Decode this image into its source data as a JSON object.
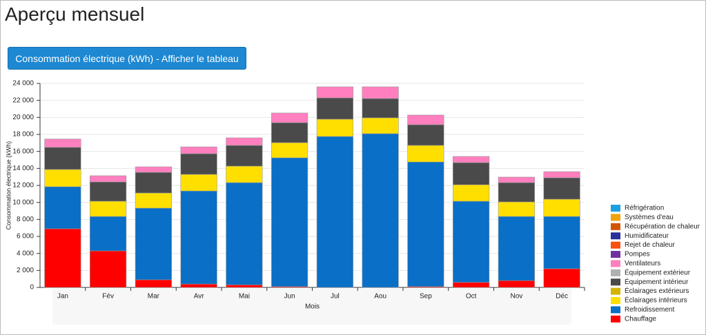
{
  "title": "Aperçu mensuel",
  "button": {
    "label": "Consommation électrique (kWh) - Afficher le tableau"
  },
  "chart_data": {
    "type": "stacked-bar",
    "x_label": "Mois",
    "y_label": "Consommation électrique (kWh)",
    "categories": [
      "Jan",
      "Fév",
      "Mar",
      "Avr",
      "Mai",
      "Jun",
      "Jul",
      "Aou",
      "Sep",
      "Oct",
      "Nov",
      "Déc"
    ],
    "ylim": [
      0,
      24000
    ],
    "yticks": [
      0,
      {
        "value": 2000,
        "label": "2 000"
      },
      {
        "value": 4000,
        "label": "4 000"
      },
      {
        "value": 6000,
        "label": "6 000"
      },
      {
        "value": 8000,
        "label": "8 000"
      },
      {
        "value": 10000,
        "label": "10 000"
      },
      {
        "value": 12000,
        "label": "12 000"
      },
      {
        "value": 14000,
        "label": "14 000"
      },
      {
        "value": 16000,
        "label": "16 000"
      },
      {
        "value": 18000,
        "label": "18 000"
      },
      {
        "value": 20000,
        "label": "20 000"
      },
      {
        "value": 22000,
        "label": "22 000"
      },
      {
        "value": 24000,
        "label": "24 000"
      }
    ],
    "grid": true,
    "legend": "right",
    "series": [
      {
        "name": "Réfrigération",
        "color": "#1ba1e2",
        "values": [
          0,
          0,
          0,
          0,
          0,
          0,
          0,
          0,
          0,
          0,
          0,
          0
        ]
      },
      {
        "name": "Systèmes d'eau",
        "color": "#f0a30a",
        "values": [
          0,
          0,
          0,
          0,
          0,
          0,
          0,
          0,
          0,
          0,
          0,
          0
        ]
      },
      {
        "name": "Récupération de chaleur",
        "color": "#d35400",
        "values": [
          0,
          0,
          0,
          0,
          0,
          0,
          0,
          0,
          0,
          0,
          0,
          0
        ]
      },
      {
        "name": "Humidificateur",
        "color": "#2a2f9a",
        "values": [
          0,
          0,
          0,
          0,
          0,
          0,
          0,
          0,
          0,
          0,
          0,
          0
        ]
      },
      {
        "name": "Rejet de chaleur",
        "color": "#fa4f0e",
        "values": [
          0,
          0,
          0,
          0,
          0,
          0,
          0,
          0,
          0,
          0,
          0,
          0
        ]
      },
      {
        "name": "Pompes",
        "color": "#7030a0",
        "values": [
          0,
          0,
          0,
          0,
          0,
          0,
          0,
          0,
          0,
          0,
          0,
          0
        ]
      },
      {
        "name": "Ventilateurs",
        "color": "#ff7fbf",
        "values": [
          980,
          730,
          650,
          810,
          890,
          1140,
          1300,
          1380,
          1140,
          730,
          650,
          720
        ]
      },
      {
        "name": "Équipement extérieur",
        "color": "#b0b0b0",
        "values": [
          0,
          0,
          0,
          0,
          0,
          0,
          0,
          0,
          0,
          0,
          0,
          0
        ]
      },
      {
        "name": "Équipement intérieur",
        "color": "#4a4a4a",
        "values": [
          2600,
          2270,
          2430,
          2430,
          2440,
          2350,
          2510,
          2270,
          2430,
          2600,
          2270,
          2520
        ]
      },
      {
        "name": "Éclairages extérieurs",
        "color": "#d4b400",
        "values": [
          0,
          0,
          0,
          0,
          0,
          0,
          0,
          0,
          0,
          0,
          0,
          0
        ]
      },
      {
        "name": "Éclairages intérieurs",
        "color": "#ffdf00",
        "values": [
          2030,
          1790,
          1780,
          1950,
          1940,
          1780,
          2030,
          1860,
          1950,
          1940,
          1710,
          2030
        ]
      },
      {
        "name": "Refroidissement",
        "color": "#0a6fc6",
        "values": [
          4950,
          4050,
          8430,
          10950,
          12030,
          15150,
          17760,
          18090,
          14660,
          9540,
          7550,
          6150
        ]
      },
      {
        "name": "Chauffage",
        "color": "#ff0000",
        "values": [
          6900,
          4300,
          900,
          400,
          300,
          100,
          0,
          0,
          100,
          600,
          800,
          2200
        ]
      }
    ]
  }
}
